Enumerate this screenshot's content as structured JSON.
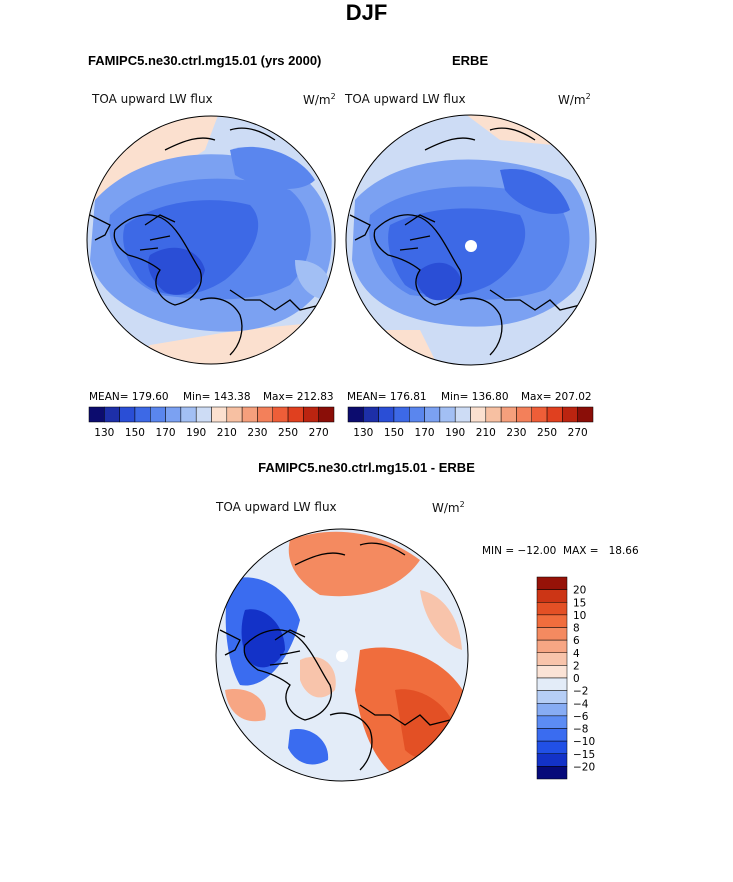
{
  "title": "DJF",
  "panels": [
    {
      "header": "FAMIPC5.ne30.ctrl.mg15.01 (yrs 2000)",
      "field": "TOA upward LW flux",
      "units_base": "W/m",
      "units_exp": "2",
      "stats": {
        "mean": "MEAN= 179.60",
        "min": "Min= 143.38",
        "max": "Max= 212.83"
      }
    },
    {
      "header": "ERBE",
      "field": "TOA upward LW flux",
      "units_base": "W/m",
      "units_exp": "2",
      "stats": {
        "mean": "MEAN= 176.81",
        "min": "Min= 136.80",
        "max": "Max= 207.02"
      }
    },
    {
      "header": "FAMIPC5.ne30.ctrl.mg15.01 - ERBE",
      "field": "TOA upward LW flux",
      "units_base": "W/m",
      "units_exp": "2",
      "stats": {
        "minmax": "MIN = −12.00  MAX =   18.66"
      }
    }
  ],
  "colors": {
    "abs_scale": [
      "#0c0c6e",
      "#1d2fa8",
      "#2a4ed6",
      "#3d69e6",
      "#5a86ee",
      "#7ba1f2",
      "#a2bff4",
      "#cddcf5",
      "#fbe0cf",
      "#f7c0a2",
      "#f59f7c",
      "#f3805a",
      "#ee5e38",
      "#e0401f",
      "#bb2410",
      "#8a0e08"
    ],
    "diff_scale": [
      "#060a7a",
      "#1332c8",
      "#2150e6",
      "#3a6cf0",
      "#5c8cf4",
      "#87acf4",
      "#b6cef6",
      "#e3ecf8",
      "#fbe3d6",
      "#f8c4ab",
      "#f7a684",
      "#f48a60",
      "#f06d3d",
      "#e35025",
      "#cc3515",
      "#961208"
    ]
  },
  "chart_data": [
    {
      "type": "heatmap",
      "title": "FAMIPC5.ne30.ctrl.mg15.01 (yrs 2000)",
      "subtitle": "TOA upward LW flux",
      "units": "W/m^2",
      "mean": 179.6,
      "min": 143.38,
      "max": 212.83,
      "colorbar_ticks": [
        "130",
        "150",
        "170",
        "190",
        "210",
        "230",
        "250",
        "270"
      ]
    },
    {
      "type": "heatmap",
      "title": "ERBE",
      "subtitle": "TOA upward LW flux",
      "units": "W/m^2",
      "mean": 176.81,
      "min": 136.8,
      "max": 207.02,
      "colorbar_ticks": [
        "130",
        "150",
        "170",
        "190",
        "210",
        "230",
        "250",
        "270"
      ]
    },
    {
      "type": "heatmap",
      "title": "FAMIPC5.ne30.ctrl.mg15.01 - ERBE",
      "subtitle": "TOA upward LW flux",
      "units": "W/m^2",
      "min": -12.0,
      "max": 18.66,
      "colorbar_ticks": [
        "20",
        "15",
        "10",
        "8",
        "6",
        "4",
        "2",
        "0",
        "−2",
        "−4",
        "−6",
        "−8",
        "−10",
        "−15",
        "−20"
      ]
    }
  ]
}
